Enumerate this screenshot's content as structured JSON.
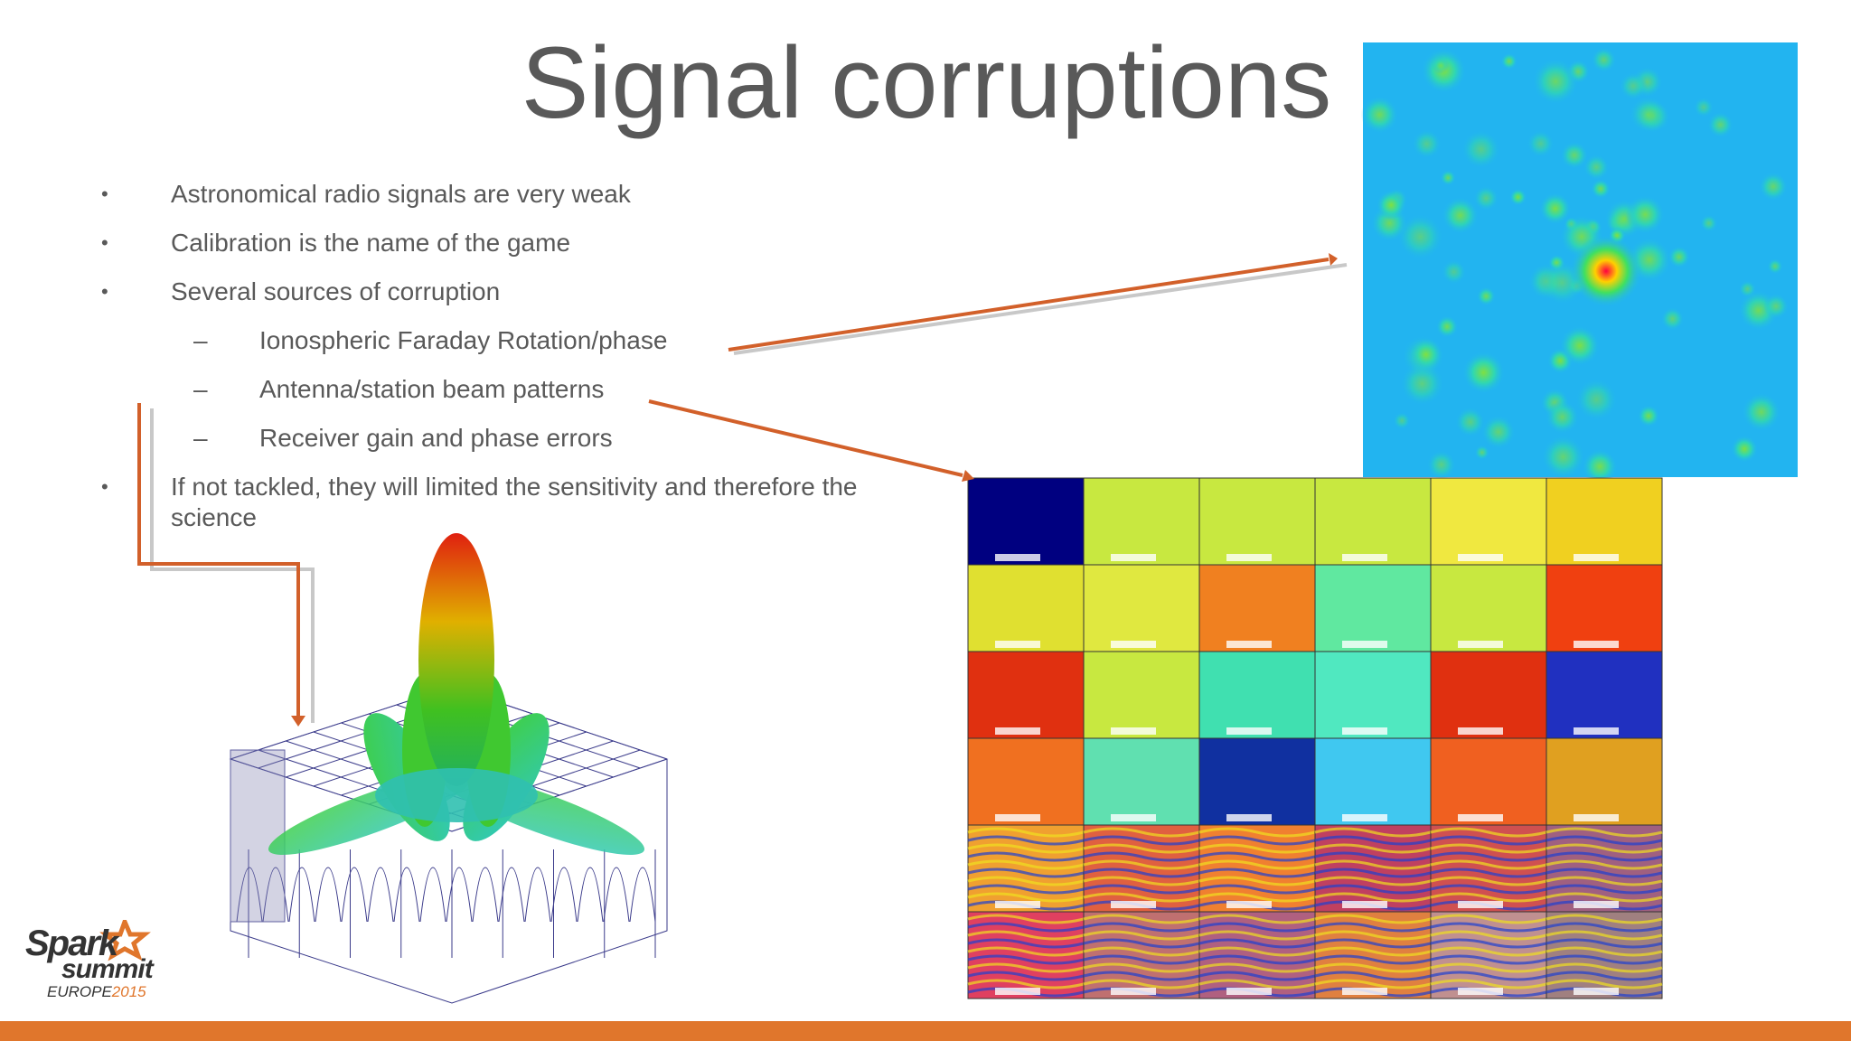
{
  "slide": {
    "title": "Signal corruptions",
    "bullets": [
      {
        "level": 1,
        "marker": "•",
        "text": "Astronomical radio signals are very weak"
      },
      {
        "level": 1,
        "marker": "•",
        "text": "Calibration is the name of the game"
      },
      {
        "level": 1,
        "marker": "•",
        "text": "Several sources of corruption"
      },
      {
        "level": 2,
        "marker": "–",
        "text": "Ionospheric Faraday Rotation/phase"
      },
      {
        "level": 2,
        "marker": "–",
        "text": "Antenna/station beam patterns"
      },
      {
        "level": 2,
        "marker": "–",
        "text": "Receiver gain and phase errors"
      },
      {
        "level": 1,
        "marker": "•",
        "text": "If not tackled, they will limited the sensitivity and therefore the science"
      }
    ],
    "logo": {
      "line1": "Spark",
      "line2": "summit",
      "line3": "EUROPE",
      "line4": "2015"
    }
  }
}
